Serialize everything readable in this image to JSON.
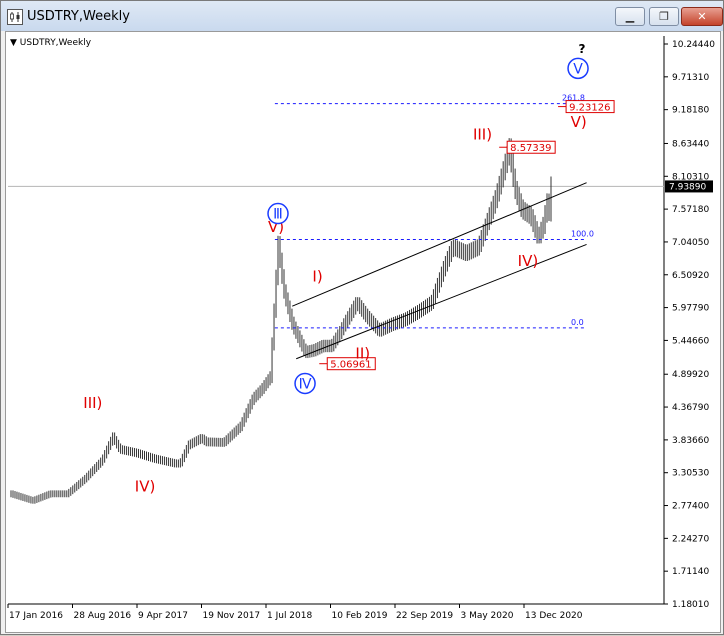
{
  "window": {
    "title": "USDTRY,Weekly",
    "minimize_icon": "minimize-icon",
    "restore_icon": "restore-icon",
    "close_icon": "close-icon"
  },
  "chart_data": {
    "type": "line",
    "title": "USDTRY,Weekly",
    "symbol": "USDTRY",
    "timeframe": "Weekly",
    "y_ticks": [
      "10.24440",
      "9.71310",
      "9.18180",
      "8.63440",
      "8.10310",
      "7.57180",
      "7.04050",
      "6.50920",
      "5.97790",
      "5.44660",
      "4.89920",
      "4.36790",
      "3.83660",
      "3.30530",
      "2.77400",
      "2.24270",
      "1.71140",
      "1.18010"
    ],
    "ylim": [
      1.1801,
      10.2444
    ],
    "x_ticks": [
      "17 Jan 2016",
      "28 Aug 2016",
      "9 Apr 2017",
      "19 Nov 2017",
      "1 Jul 2018",
      "10 Feb 2019",
      "22 Sep 2019",
      "3 May 2020",
      "13 Dec 2020"
    ],
    "current_price": "7.93890",
    "series": [
      {
        "x": [
          "2016-01-17",
          "2016-04-01",
          "2016-06-01",
          "2016-08-01",
          "2016-10-01",
          "2016-12-01",
          "2017-01-08",
          "2017-02-01",
          "2017-04-01",
          "2017-06-01",
          "2017-08-15",
          "2017-09-01",
          "2017-10-01",
          "2017-11-15",
          "2017-12-01",
          "2018-02-01",
          "2018-04-01",
          "2018-05-15",
          "2018-06-15",
          "2018-07-15",
          "2018-08-12",
          "2018-09-01",
          "2018-10-01",
          "2018-11-15",
          "2018-12-15",
          "2019-01-15",
          "2019-02-15",
          "2019-03-15",
          "2019-04-01",
          "2019-05-15",
          "2019-06-15",
          "2019-08-01",
          "2019-09-15",
          "2019-11-01",
          "2019-12-15",
          "2020-02-01",
          "2020-03-15",
          "2020-04-15",
          "2020-06-01",
          "2020-07-15",
          "2020-08-15",
          "2020-09-15",
          "2020-10-15",
          "2020-11-01",
          "2020-11-20",
          "2020-12-15",
          "2021-01-15",
          "2021-02-10",
          "2021-02-28",
          "2021-03-15",
          "2021-03-20",
          "2021-03-28"
        ],
        "values": [
          2.96,
          2.85,
          2.96,
          2.96,
          3.2,
          3.5,
          3.88,
          3.68,
          3.62,
          3.53,
          3.45,
          3.45,
          3.75,
          3.86,
          3.8,
          3.79,
          4.05,
          4.5,
          4.65,
          4.85,
          7.0,
          6.25,
          5.7,
          5.25,
          5.28,
          5.35,
          5.35,
          5.55,
          5.7,
          6.05,
          5.85,
          5.6,
          5.7,
          5.78,
          5.9,
          6.05,
          6.6,
          6.95,
          6.85,
          6.95,
          7.35,
          7.75,
          8.25,
          8.55,
          7.9,
          7.55,
          7.45,
          7.1,
          7.3,
          7.7,
          7.45,
          7.94
        ]
      }
    ],
    "fibonacci": [
      {
        "level_label": "0.0",
        "price": 5.65
      },
      {
        "level_label": "100.0",
        "price": 7.08
      },
      {
        "level_label": "261.8",
        "price": 9.28
      }
    ],
    "price_labels": [
      {
        "text": "8.57339",
        "price": 8.57339
      },
      {
        "text": "9.23126",
        "price": 9.23126
      },
      {
        "text": "5.06961",
        "price": 5.06961
      }
    ],
    "wave_labels": {
      "red": [
        {
          "text": "III)",
          "date": "2016-11-01",
          "price": 4.35
        },
        {
          "text": "IV)",
          "date": "2017-05-01",
          "price": 3.0
        },
        {
          "text": "V)",
          "date": "2018-08-12",
          "price": 7.2
        },
        {
          "text": "I)",
          "date": "2019-01-15",
          "price": 6.4
        },
        {
          "text": "II)",
          "date": "2019-06-15",
          "price": 5.15
        },
        {
          "text": "III)",
          "date": "2020-08-01",
          "price": 8.7
        },
        {
          "text": "IV)",
          "date": "2021-01-05",
          "price": 6.65
        },
        {
          "text": "V)",
          "date": "2021-07-10",
          "price": 8.9
        }
      ],
      "blue": [
        {
          "text": "Ⅲ",
          "date": "2018-08-12",
          "price": 7.5
        },
        {
          "text": "Ⅳ",
          "date": "2018-11-15",
          "price": 4.75
        },
        {
          "text": "Ⅴ",
          "date": "2021-07-01",
          "price": 9.85
        }
      ],
      "question": {
        "text": "?",
        "date": "2021-07-15",
        "price": 10.1
      }
    },
    "channel_lines": [
      {
        "x1": "2018-10-01",
        "y1": 6.0,
        "x2": "2021-07-31",
        "y2": 8.0
      },
      {
        "x1": "2018-10-15",
        "y1": 5.15,
        "x2": "2021-07-31",
        "y2": 7.0
      }
    ]
  }
}
